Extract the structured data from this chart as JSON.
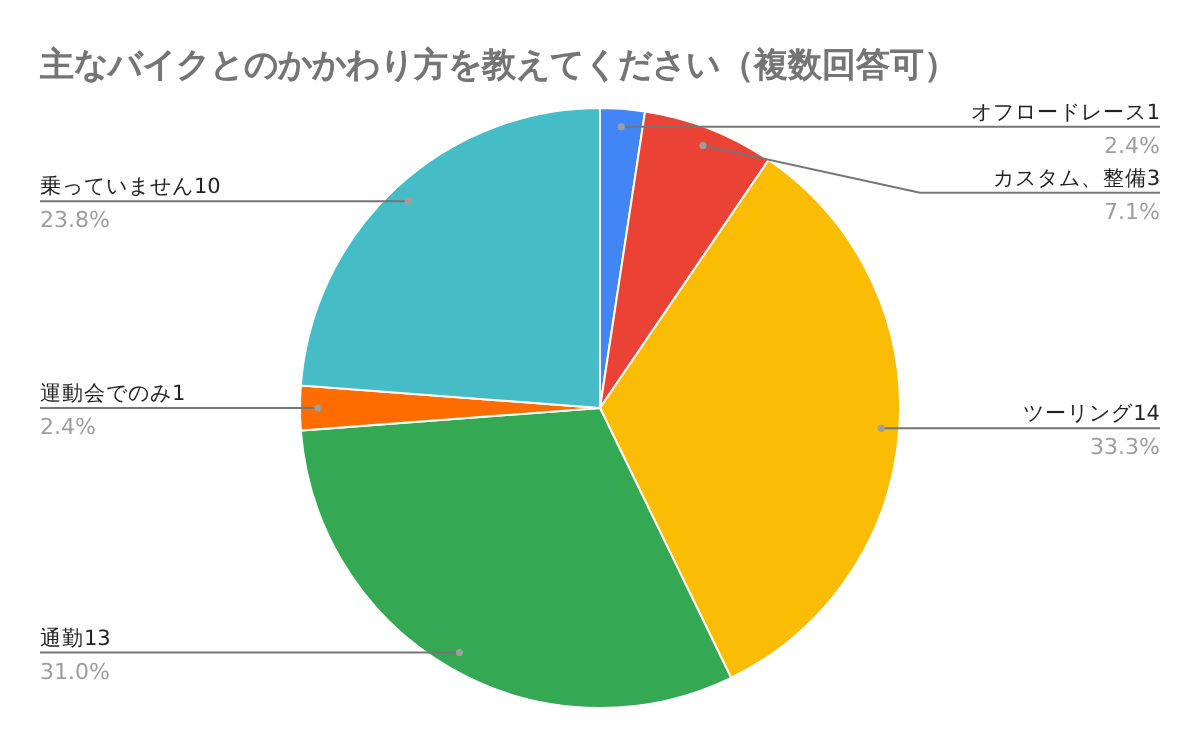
{
  "chart_data": {
    "type": "pie",
    "title": "主なバイクとのかかわり方を教えてください（複数回答可）",
    "categories": [
      "オフロードレース1",
      "カスタム、整備3",
      "ツーリング14",
      "通勤13",
      "運動会でのみ1",
      "乗っていません10"
    ],
    "values": [
      2.4,
      7.1,
      33.3,
      31.0,
      2.4,
      23.8
    ],
    "value_labels": [
      "2.4%",
      "7.1%",
      "33.3%",
      "31.0%",
      "2.4%",
      "23.8%"
    ],
    "colors": [
      "#4285f4",
      "#ea4335",
      "#fbbc04",
      "#34a853",
      "#ff6d01",
      "#46bdc6"
    ]
  }
}
